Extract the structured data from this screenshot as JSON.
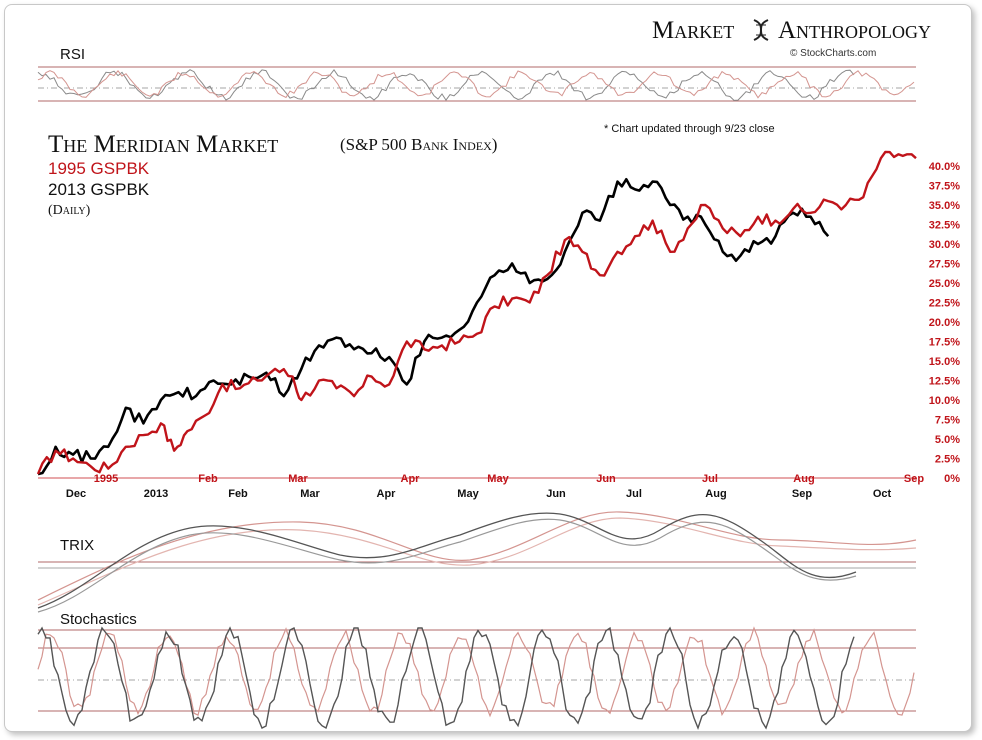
{
  "header": {
    "brand_left": "Market",
    "brand_right": "Anthropology",
    "brand_icon": "dna-helix-icon",
    "credit": "© StockCharts.com",
    "note": "* Chart updated through 9/23 close"
  },
  "title": {
    "main": "The Meridian Market",
    "sub": "(S&P 500 Bank Index)",
    "series_1995": "1995 GSPBK",
    "series_2013": "2013 GSPBK",
    "period": "(Daily)"
  },
  "colors": {
    "series_1995": "#c0141a",
    "series_2013": "#000000",
    "light_1995": "#d49590",
    "light_2013": "#8a8a8a",
    "grid": "#b06a6a"
  },
  "panels": {
    "rsi_label": "RSI",
    "trix_label": "TRIX",
    "stoch_label": "Stochastics"
  },
  "chart_data": {
    "type": "line",
    "y_axis": {
      "position": "right",
      "ticks": [
        "40.0%",
        "37.5%",
        "35.0%",
        "32.5%",
        "30.0%",
        "27.5%",
        "25.0%",
        "22.5%",
        "20.0%",
        "17.5%",
        "15.0%",
        "12.5%",
        "10.0%",
        "7.5%",
        "5.0%",
        "2.5%",
        "0%"
      ],
      "ylim": [
        0,
        40
      ]
    },
    "x_axis_1995": [
      "1995",
      "Feb",
      "Mar",
      "Apr",
      "May",
      "Jun",
      "Jul",
      "Aug",
      "Sep"
    ],
    "x_axis_2013": [
      "Dec",
      "2013",
      "Feb",
      "Mar",
      "Apr",
      "May",
      "Jun",
      "Jul",
      "Aug",
      "Sep",
      "Oct"
    ],
    "series": [
      {
        "name": "1995 GSPBK",
        "x": [
          0,
          0.02,
          0.04,
          0.06,
          0.08,
          0.1,
          0.12,
          0.14,
          0.155,
          0.17,
          0.19,
          0.21,
          0.23,
          0.25,
          0.27,
          0.29,
          0.3,
          0.32,
          0.34,
          0.36,
          0.38,
          0.4,
          0.42,
          0.44,
          0.46,
          0.48,
          0.5,
          0.52,
          0.54,
          0.56,
          0.58,
          0.6,
          0.62,
          0.64,
          0.66,
          0.68,
          0.7,
          0.72,
          0.74,
          0.76,
          0.78,
          0.8,
          0.82,
          0.84,
          0.86,
          0.88,
          0.9,
          0.92,
          0.94,
          0.96,
          0.98,
          1.0
        ],
        "values": [
          0.5,
          3.5,
          2.5,
          1.5,
          1.2,
          4.0,
          5.5,
          7.0,
          3.5,
          6.0,
          8.0,
          12.0,
          11.5,
          12.5,
          14.0,
          13.0,
          10.0,
          12.5,
          11.5,
          10.5,
          13.0,
          12.0,
          17.5,
          16.5,
          17.0,
          17.5,
          18.5,
          22.0,
          23.0,
          22.5,
          26.0,
          30.5,
          29.0,
          26.0,
          29.0,
          31.0,
          33.0,
          29.0,
          32.0,
          35.0,
          32.0,
          31.0,
          33.5,
          33.0,
          34.5,
          34.0,
          35.5,
          35.0,
          36.0,
          41.0,
          41.5,
          41.0
        ]
      },
      {
        "name": "2013 GSPBK",
        "x": [
          0,
          0.02,
          0.04,
          0.06,
          0.08,
          0.1,
          0.12,
          0.14,
          0.16,
          0.18,
          0.2,
          0.22,
          0.24,
          0.26,
          0.28,
          0.3,
          0.32,
          0.34,
          0.36,
          0.38,
          0.4,
          0.42,
          0.44,
          0.46,
          0.48,
          0.5,
          0.52,
          0.54,
          0.56,
          0.58,
          0.6,
          0.62,
          0.64,
          0.66,
          0.68,
          0.7,
          0.72,
          0.74,
          0.76,
          0.78,
          0.8,
          0.82,
          0.84,
          0.86,
          0.88,
          0.9
        ],
        "values": [
          0.5,
          4.0,
          3.0,
          2.5,
          4.0,
          9.0,
          7.0,
          10.0,
          11.0,
          10.5,
          12.5,
          12.0,
          13.0,
          13.5,
          10.5,
          14.0,
          17.0,
          18.0,
          16.5,
          16.0,
          15.5,
          12.0,
          17.5,
          18.0,
          19.0,
          22.5,
          26.0,
          27.5,
          25.0,
          25.5,
          29.0,
          34.0,
          33.0,
          38.0,
          37.0,
          38.0,
          35.0,
          33.5,
          32.5,
          29.0,
          28.5,
          30.0,
          31.0,
          34.0,
          33.5,
          31.0
        ]
      }
    ]
  }
}
